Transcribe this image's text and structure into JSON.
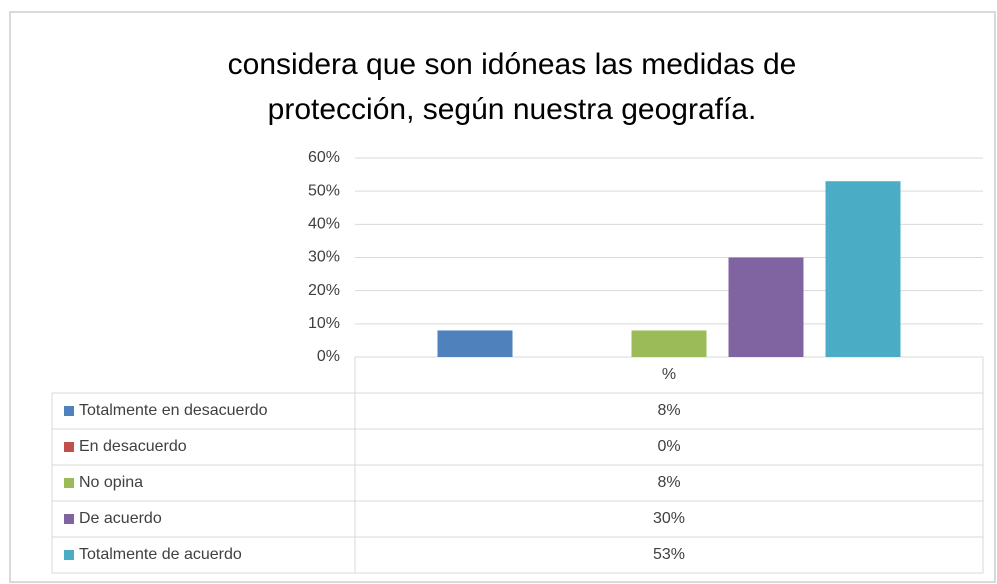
{
  "chart_data": {
    "type": "bar",
    "title": "considera que son idóneas las medidas de protección, según nuestra geografía.",
    "categories": [
      "%"
    ],
    "series": [
      {
        "name": "Totalmente en desacuerdo",
        "color": "#4f81bd",
        "values": [
          8
        ],
        "value_labels": [
          "8%"
        ]
      },
      {
        "name": "En desacuerdo",
        "color": "#c0504d",
        "values": [
          0
        ],
        "value_labels": [
          "0%"
        ]
      },
      {
        "name": "No opina",
        "color": "#9bbb59",
        "values": [
          8
        ],
        "value_labels": [
          "8%"
        ]
      },
      {
        "name": "De acuerdo",
        "color": "#8064a2",
        "values": [
          30
        ],
        "value_labels": [
          "30%"
        ]
      },
      {
        "name": "Totalmente de acuerdo",
        "color": "#4bacc6",
        "values": [
          53
        ],
        "value_labels": [
          "53%"
        ]
      }
    ],
    "ylim": [
      0,
      60
    ],
    "yticks": [
      {
        "value": 0,
        "label": "0%"
      },
      {
        "value": 10,
        "label": "10%"
      },
      {
        "value": 20,
        "label": "20%"
      },
      {
        "value": 30,
        "label": "30%"
      },
      {
        "value": 40,
        "label": "40%"
      },
      {
        "value": 50,
        "label": "50%"
      },
      {
        "value": 60,
        "label": "60%"
      }
    ],
    "grid": true
  }
}
